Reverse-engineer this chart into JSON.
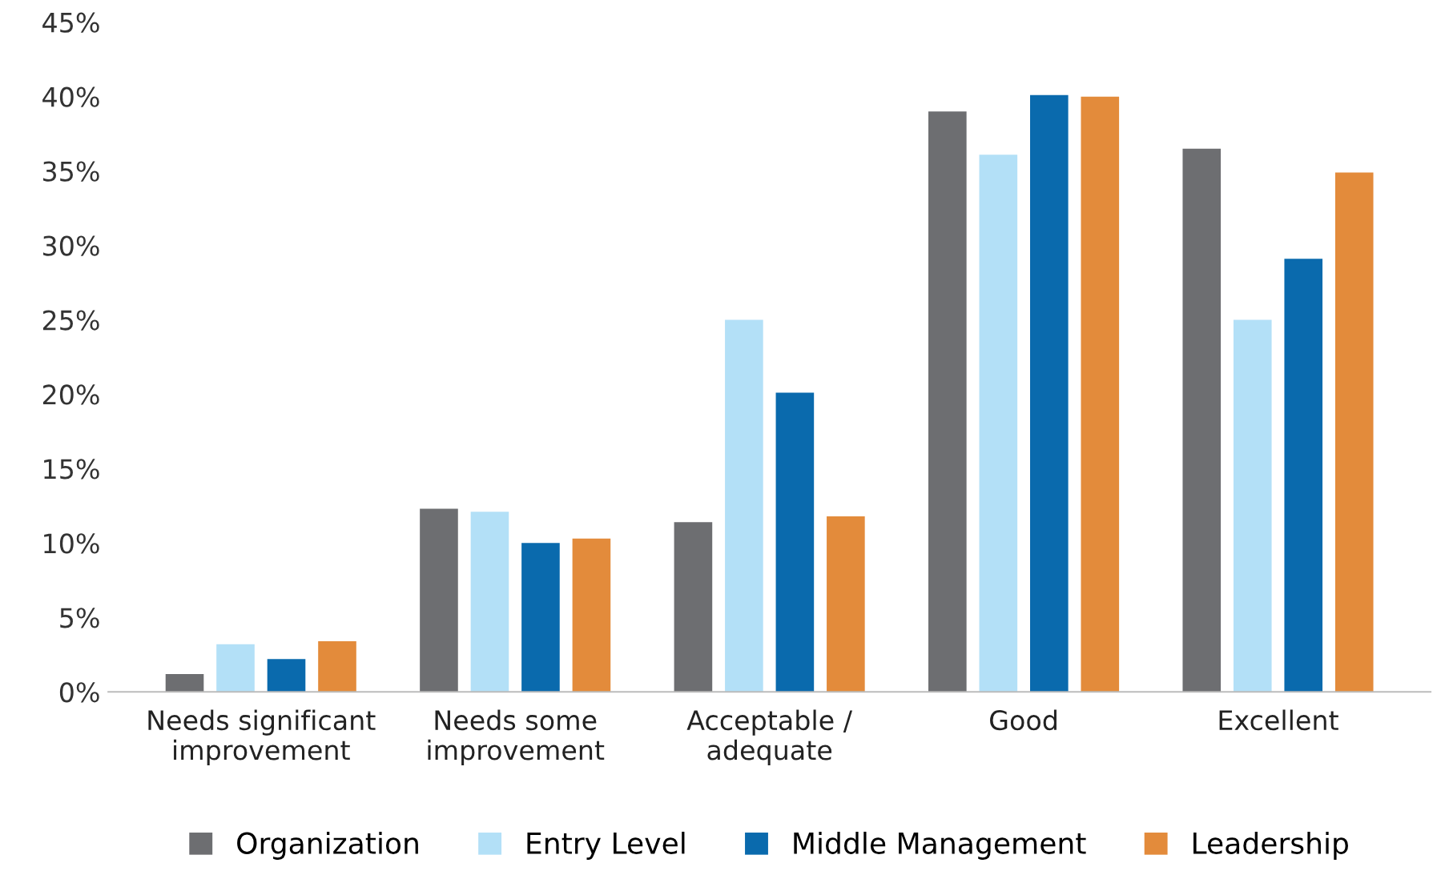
{
  "chart_data": {
    "type": "bar",
    "categories": [
      "Needs significant\nimprovement",
      "Needs some\nimprovement",
      "Acceptable /\nadequate",
      "Good",
      "Excellent"
    ],
    "series": [
      {
        "name": "Organization",
        "color": "#6d6e71",
        "values": [
          1.2,
          12.3,
          11.4,
          39.0,
          36.5
        ]
      },
      {
        "name": "Entry Level",
        "color": "#b3e0f7",
        "values": [
          3.2,
          12.1,
          25.0,
          36.1,
          25.0
        ]
      },
      {
        "name": "Middle Management",
        "color": "#0a6aad",
        "values": [
          2.2,
          10.0,
          20.1,
          40.1,
          29.1
        ]
      },
      {
        "name": "Leadership",
        "color": "#e38b3b",
        "values": [
          3.4,
          10.3,
          11.8,
          40.0,
          34.9
        ]
      }
    ],
    "ylim": [
      0,
      45
    ],
    "yticks": [
      {
        "value": 0,
        "label": "0%"
      },
      {
        "value": 5,
        "label": "5%"
      },
      {
        "value": 10,
        "label": "10%"
      },
      {
        "value": 15,
        "label": "15%"
      },
      {
        "value": 20,
        "label": "20%"
      },
      {
        "value": 25,
        "label": "25%"
      },
      {
        "value": 30,
        "label": "30%"
      },
      {
        "value": 35,
        "label": "35%"
      },
      {
        "value": 40,
        "label": "40%"
      },
      {
        "value": 45,
        "label": "45%"
      }
    ],
    "grid": false,
    "legend": "bottom"
  }
}
